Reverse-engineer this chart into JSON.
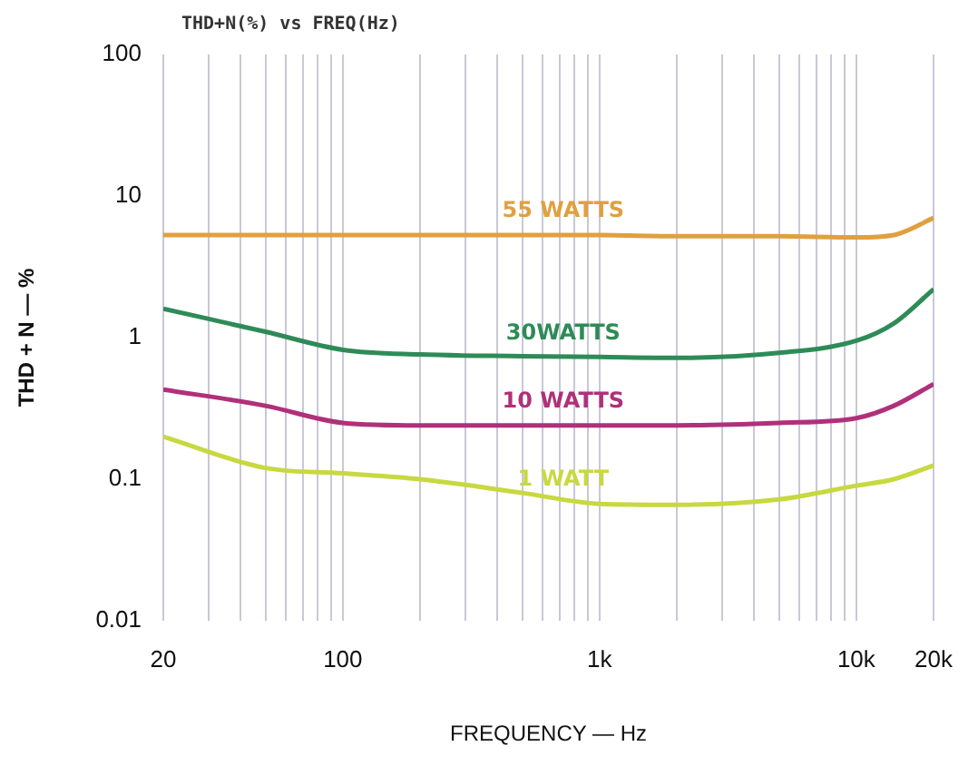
{
  "chart_data": {
    "type": "line",
    "title": "THD+N(%) vs FREQ(Hz)",
    "xlabel": "FREQUENCY — Hz",
    "ylabel": "THD + N — %",
    "log": "xy",
    "grid": "x",
    "legend": false,
    "marker": "none",
    "line_style": "solid",
    "xlim": [
      20,
      20000
    ],
    "ylim": [
      0.01,
      100
    ],
    "xticks": [
      20,
      {
        "value": 30,
        "label": null
      },
      {
        "value": 40,
        "label": null
      },
      {
        "value": 50,
        "label": null
      },
      {
        "value": 60,
        "label": null
      },
      {
        "value": 70,
        "label": null
      },
      {
        "value": 80,
        "label": null
      },
      {
        "value": 90,
        "label": null
      },
      100,
      {
        "value": 200,
        "label": null
      },
      {
        "value": 300,
        "label": null
      },
      {
        "value": 400,
        "label": null
      },
      {
        "value": 500,
        "label": null
      },
      {
        "value": 600,
        "label": null
      },
      {
        "value": 700,
        "label": null
      },
      {
        "value": 800,
        "label": null
      },
      {
        "value": 900,
        "label": null
      },
      {
        "value": 1000,
        "label": "1k"
      },
      {
        "value": 2000,
        "label": null
      },
      {
        "value": 3000,
        "label": null
      },
      {
        "value": 4000,
        "label": null
      },
      {
        "value": 5000,
        "label": null
      },
      {
        "value": 6000,
        "label": null
      },
      {
        "value": 7000,
        "label": null
      },
      {
        "value": 8000,
        "label": null
      },
      {
        "value": 9000,
        "label": null
      },
      {
        "value": 10000,
        "label": "10k"
      },
      {
        "value": 20000,
        "label": "20k"
      }
    ],
    "yticks": [
      0.01,
      0.1,
      1,
      10,
      100
    ],
    "x": [
      20,
      50,
      100,
      200,
      500,
      1000,
      2000,
      5000,
      10000,
      14000,
      20000
    ],
    "series": [
      {
        "name": "55 WATTS",
        "color": "#e0a040",
        "values": [
          5.3,
          5.3,
          5.3,
          5.3,
          5.3,
          5.3,
          5.2,
          5.2,
          5.1,
          5.3,
          7
        ]
      },
      {
        "name": "30WATTS",
        "color": "#2e8b57",
        "values": [
          1.6,
          1.1,
          0.82,
          0.76,
          0.74,
          0.73,
          0.72,
          0.78,
          0.95,
          1.26,
          2.2
        ]
      },
      {
        "name": "10 WATTS",
        "color": "#b0307a",
        "values": [
          0.43,
          0.33,
          0.25,
          0.24,
          0.24,
          0.24,
          0.24,
          0.25,
          0.27,
          0.33,
          0.47
        ]
      },
      {
        "name": "1 WATT",
        "color": "#c8d840",
        "values": [
          0.2,
          0.12,
          0.11,
          0.1,
          0.08,
          0.067,
          0.066,
          0.072,
          0.09,
          0.1,
          0.125
        ]
      }
    ]
  }
}
